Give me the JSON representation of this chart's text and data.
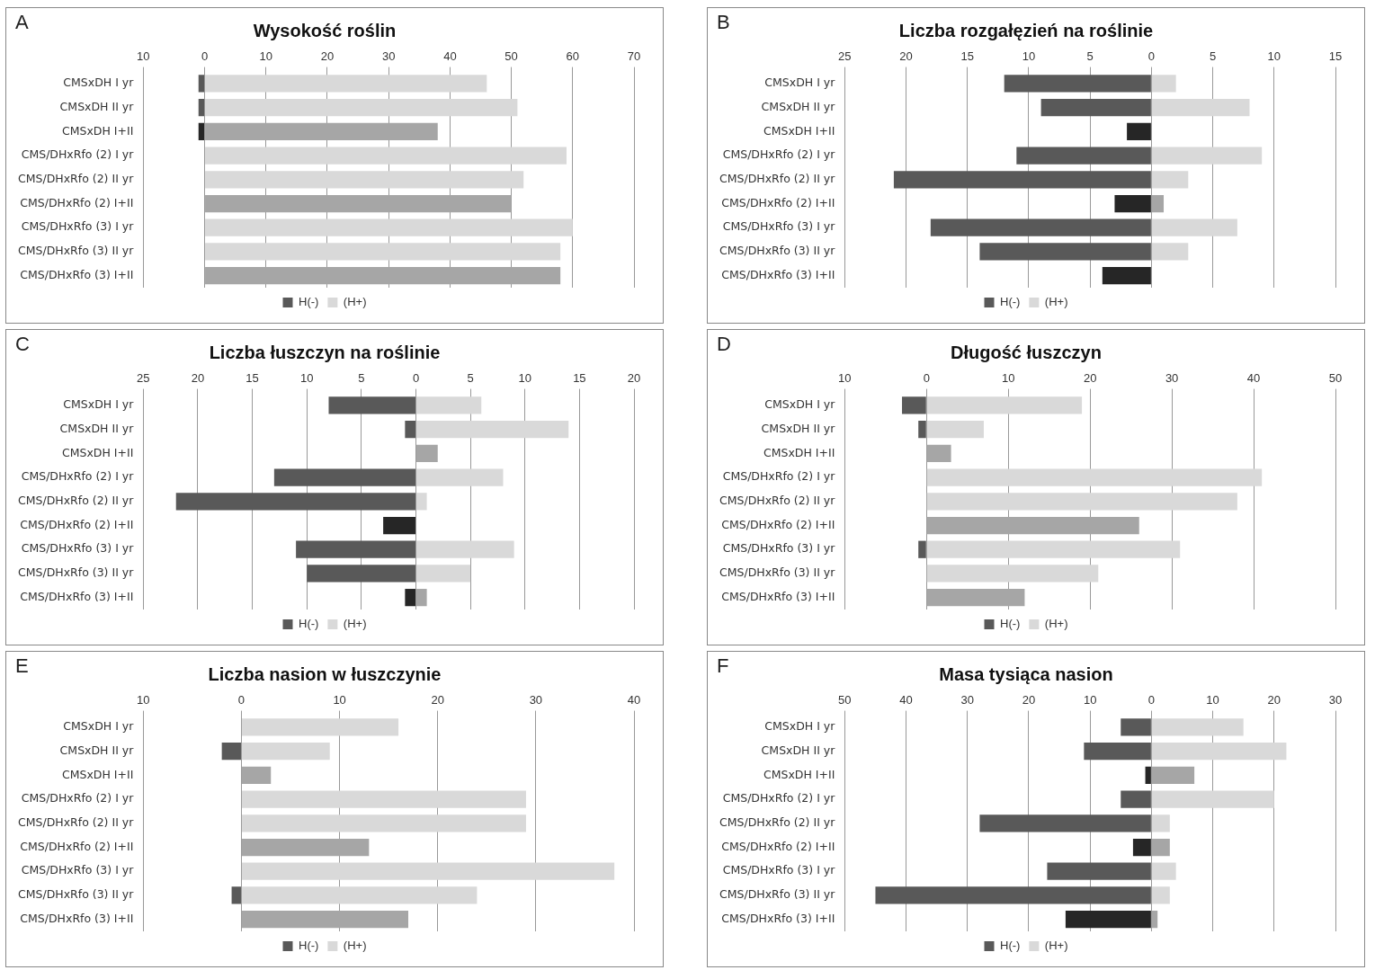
{
  "chart_data": [
    {
      "type": "bar",
      "orientation": "horizontal",
      "stacked": true,
      "grid": "x",
      "legend": "bottom",
      "title": "Wysokość roślin",
      "annotations": [
        "A"
      ],
      "categories": [
        "CMSxDH I yr",
        "CMSxDH II yr",
        "CMSxDH I+II",
        "CMS/DHxRfo (2) I yr",
        "CMS/DHxRfo (2) II yr",
        "CMS/DHxRfo (2) I+II",
        "CMS/DHxRfo (3) I yr",
        "CMS/DHxRfo (3) II yr",
        "CMS/DHxRfo (3) I+II"
      ],
      "xlim": [
        -10,
        70
      ],
      "xticks": [
        {
          "value": -10,
          "label": "10"
        },
        0,
        10,
        20,
        30,
        40,
        50,
        60,
        70
      ],
      "series": [
        {
          "name": "H(-)",
          "color": "#595959",
          "colors": [
            "#595959",
            "#595959",
            "#262626",
            "#595959",
            "#595959",
            "#262626",
            "#595959",
            "#595959",
            "#262626"
          ],
          "values": [
            -1,
            -1,
            -1,
            null,
            null,
            null,
            null,
            null,
            null
          ]
        },
        {
          "name": "(H+)",
          "color": "#d9d9d9",
          "colors": [
            "#d9d9d9",
            "#d9d9d9",
            "#a6a6a6",
            "#d9d9d9",
            "#d9d9d9",
            "#a6a6a6",
            "#d9d9d9",
            "#d9d9d9",
            "#a6a6a6"
          ],
          "values": [
            46,
            51,
            38,
            59,
            52,
            50,
            60,
            58,
            58
          ]
        }
      ]
    },
    {
      "type": "bar",
      "orientation": "horizontal",
      "stacked": true,
      "grid": "x",
      "legend": "bottom",
      "title": "Liczba rozgałęzień na roślinie",
      "annotations": [
        "B"
      ],
      "categories": [
        "CMSxDH I yr",
        "CMSxDH II yr",
        "CMSxDH I+II",
        "CMS/DHxRfo (2) I yr",
        "CMS/DHxRfo (2) II yr",
        "CMS/DHxRfo (2) I+II",
        "CMS/DHxRfo (3) I yr",
        "CMS/DHxRfo (3) II yr",
        "CMS/DHxRfo (3) I+II"
      ],
      "xlim": [
        -25,
        15
      ],
      "xticks": [
        {
          "value": -25,
          "label": "25"
        },
        {
          "value": -20,
          "label": "20"
        },
        {
          "value": -15,
          "label": "15"
        },
        {
          "value": -10,
          "label": "10"
        },
        {
          "value": -5,
          "label": "5"
        },
        0,
        5,
        10,
        15
      ],
      "series": [
        {
          "name": "H(-)",
          "color": "#595959",
          "colors": [
            "#595959",
            "#595959",
            "#262626",
            "#595959",
            "#595959",
            "#262626",
            "#595959",
            "#595959",
            "#262626"
          ],
          "values": [
            -12,
            -9,
            -2,
            -11,
            -21,
            -3,
            -18,
            -14,
            -4
          ]
        },
        {
          "name": "(H+)",
          "color": "#d9d9d9",
          "colors": [
            "#d9d9d9",
            "#d9d9d9",
            "#a6a6a6",
            "#d9d9d9",
            "#d9d9d9",
            "#a6a6a6",
            "#d9d9d9",
            "#d9d9d9",
            "#a6a6a6"
          ],
          "values": [
            2,
            8,
            null,
            9,
            3,
            1,
            7,
            3,
            null
          ]
        }
      ]
    },
    {
      "type": "bar",
      "orientation": "horizontal",
      "stacked": true,
      "grid": "x",
      "legend": "bottom",
      "title": "Liczba łuszczyn na roślinie",
      "annotations": [
        "C"
      ],
      "categories": [
        "CMSxDH I yr",
        "CMSxDH II yr",
        "CMSxDH I+II",
        "CMS/DHxRfo (2) I yr",
        "CMS/DHxRfo (2) II yr",
        "CMS/DHxRfo (2) I+II",
        "CMS/DHxRfo (3) I yr",
        "CMS/DHxRfo (3) II yr",
        "CMS/DHxRfo (3) I+II"
      ],
      "xlim": [
        -25,
        20
      ],
      "xticks": [
        {
          "value": -25,
          "label": "25"
        },
        {
          "value": -20,
          "label": "20"
        },
        {
          "value": -15,
          "label": "15"
        },
        {
          "value": -10,
          "label": "10"
        },
        {
          "value": -5,
          "label": "5"
        },
        0,
        5,
        10,
        15,
        20
      ],
      "series": [
        {
          "name": "H(-)",
          "color": "#595959",
          "colors": [
            "#595959",
            "#595959",
            "#262626",
            "#595959",
            "#595959",
            "#262626",
            "#595959",
            "#595959",
            "#262626"
          ],
          "values": [
            -8,
            -1,
            null,
            -13,
            -22,
            -3,
            -11,
            -10,
            -1
          ]
        },
        {
          "name": "(H+)",
          "color": "#d9d9d9",
          "colors": [
            "#d9d9d9",
            "#d9d9d9",
            "#a6a6a6",
            "#d9d9d9",
            "#d9d9d9",
            "#a6a6a6",
            "#d9d9d9",
            "#d9d9d9",
            "#a6a6a6"
          ],
          "values": [
            6,
            14,
            2,
            8,
            1,
            null,
            9,
            5,
            1
          ]
        }
      ]
    },
    {
      "type": "bar",
      "orientation": "horizontal",
      "stacked": true,
      "grid": "x",
      "legend": "bottom",
      "title": "Długość łuszczyn",
      "annotations": [
        "D"
      ],
      "categories": [
        "CMSxDH I yr",
        "CMSxDH II yr",
        "CMSxDH I+II",
        "CMS/DHxRfo (2) I yr",
        "CMS/DHxRfo (2) II yr",
        "CMS/DHxRfo (2) I+II",
        "CMS/DHxRfo (3) I yr",
        "CMS/DHxRfo (3) II yr",
        "CMS/DHxRfo (3) I+II"
      ],
      "xlim": [
        -10,
        50
      ],
      "xticks": [
        {
          "value": -10,
          "label": "10"
        },
        0,
        10,
        20,
        30,
        40,
        50
      ],
      "series": [
        {
          "name": "H(-)",
          "color": "#595959",
          "colors": [
            "#595959",
            "#595959",
            "#262626",
            "#595959",
            "#595959",
            "#262626",
            "#595959",
            "#595959",
            "#262626"
          ],
          "values": [
            -3,
            -1,
            null,
            null,
            null,
            null,
            -1,
            null,
            null
          ]
        },
        {
          "name": "(H+)",
          "color": "#d9d9d9",
          "colors": [
            "#d9d9d9",
            "#d9d9d9",
            "#a6a6a6",
            "#d9d9d9",
            "#d9d9d9",
            "#a6a6a6",
            "#d9d9d9",
            "#d9d9d9",
            "#a6a6a6"
          ],
          "values": [
            19,
            7,
            3,
            41,
            38,
            26,
            31,
            21,
            12
          ]
        }
      ]
    },
    {
      "type": "bar",
      "orientation": "horizontal",
      "stacked": true,
      "grid": "x",
      "legend": "bottom",
      "title": "Liczba nasion w łuszczynie",
      "annotations": [
        "E"
      ],
      "categories": [
        "CMSxDH I yr",
        "CMSxDH II yr",
        "CMSxDH I+II",
        "CMS/DHxRfo (2) I yr",
        "CMS/DHxRfo (2) II yr",
        "CMS/DHxRfo (2) I+II",
        "CMS/DHxRfo (3) I yr",
        "CMS/DHxRfo (3) II yr",
        "CMS/DHxRfo (3) I+II"
      ],
      "xlim": [
        -10,
        40
      ],
      "xticks": [
        {
          "value": -10,
          "label": "10"
        },
        0,
        10,
        20,
        30,
        40
      ],
      "series": [
        {
          "name": "H(-)",
          "color": "#595959",
          "colors": [
            "#595959",
            "#595959",
            "#262626",
            "#595959",
            "#595959",
            "#262626",
            "#595959",
            "#595959",
            "#262626"
          ],
          "values": [
            null,
            -2,
            null,
            null,
            null,
            null,
            null,
            -1,
            null
          ]
        },
        {
          "name": "(H+)",
          "color": "#d9d9d9",
          "colors": [
            "#d9d9d9",
            "#d9d9d9",
            "#a6a6a6",
            "#d9d9d9",
            "#d9d9d9",
            "#a6a6a6",
            "#d9d9d9",
            "#d9d9d9",
            "#a6a6a6"
          ],
          "values": [
            16,
            9,
            3,
            29,
            29,
            13,
            38,
            24,
            17
          ]
        }
      ]
    },
    {
      "type": "bar",
      "orientation": "horizontal",
      "stacked": true,
      "grid": "x",
      "legend": "bottom",
      "title": "Masa tysiąca nasion",
      "annotations": [
        "F"
      ],
      "categories": [
        "CMSxDH I yr",
        "CMSxDH II yr",
        "CMSxDH I+II",
        "CMS/DHxRfo (2) I yr",
        "CMS/DHxRfo (2) II yr",
        "CMS/DHxRfo (2) I+II",
        "CMS/DHxRfo (3) I yr",
        "CMS/DHxRfo (3) II yr",
        "CMS/DHxRfo (3) I+II"
      ],
      "xlim": [
        -50,
        30
      ],
      "xticks": [
        {
          "value": -50,
          "label": "50"
        },
        {
          "value": -40,
          "label": "40"
        },
        {
          "value": -30,
          "label": "30"
        },
        {
          "value": -20,
          "label": "20"
        },
        {
          "value": -10,
          "label": "10"
        },
        0,
        10,
        20,
        30
      ],
      "series": [
        {
          "name": "H(-)",
          "color": "#595959",
          "colors": [
            "#595959",
            "#595959",
            "#262626",
            "#595959",
            "#595959",
            "#262626",
            "#595959",
            "#595959",
            "#262626"
          ],
          "values": [
            -5,
            -11,
            -1,
            -5,
            -28,
            -3,
            -17,
            -45,
            -14
          ]
        },
        {
          "name": "(H+)",
          "color": "#d9d9d9",
          "colors": [
            "#d9d9d9",
            "#d9d9d9",
            "#a6a6a6",
            "#d9d9d9",
            "#d9d9d9",
            "#a6a6a6",
            "#d9d9d9",
            "#d9d9d9",
            "#a6a6a6"
          ],
          "values": [
            15,
            22,
            7,
            20,
            3,
            3,
            4,
            3,
            1
          ]
        }
      ]
    }
  ]
}
